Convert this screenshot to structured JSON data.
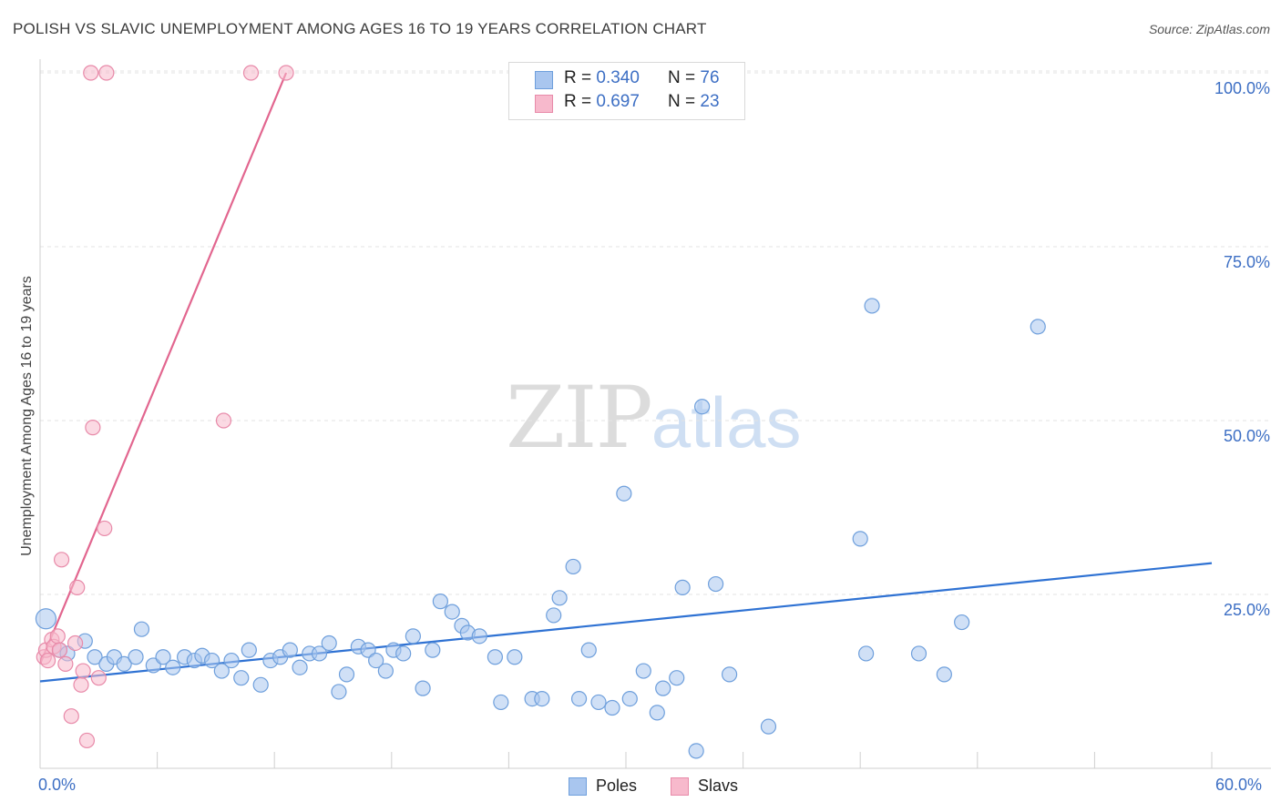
{
  "title": "POLISH VS SLAVIC UNEMPLOYMENT AMONG AGES 16 TO 19 YEARS CORRELATION CHART",
  "source": "Source: ZipAtlas.com",
  "watermark": {
    "zip": "ZIP",
    "atlas": "atlas"
  },
  "colors": {
    "poles_fill": "#a9c6ef",
    "poles_stroke": "#6e9fdc",
    "poles_line": "#2f72d3",
    "slavs_fill": "#f7b9cc",
    "slavs_stroke": "#e88aa9",
    "slavs_line": "#e2668f",
    "grid": "#e3e3e3",
    "axis_text": "#3d6fc4"
  },
  "legend": {
    "poles": {
      "r_label": "R =",
      "r_value": "0.340",
      "n_label": "N =",
      "n_value": "76"
    },
    "slavs": {
      "r_label": "R =",
      "r_value": "0.697",
      "n_label": "N =",
      "n_value": "23"
    }
  },
  "bottom_legend": {
    "poles": "Poles",
    "slavs": "Slavs"
  },
  "chart_data": {
    "type": "scatter",
    "title": "POLISH VS SLAVIC UNEMPLOYMENT AMONG AGES 16 TO 19 YEARS CORRELATION CHART",
    "xlabel": "",
    "ylabel": "Unemployment Among Ages 16 to 19 years",
    "xlim": [
      0,
      60
    ],
    "ylim": [
      0,
      105
    ],
    "x_tick_labels": [
      "0.0%",
      "60.0%"
    ],
    "y_ticks": [
      {
        "value": 25,
        "label": "25.0%"
      },
      {
        "value": 50,
        "label": "50.0%"
      },
      {
        "value": 75,
        "label": "75.0%"
      },
      {
        "value": 100,
        "label": "100.0%"
      }
    ],
    "grid": true,
    "series": [
      {
        "name": "Poles",
        "points": [
          [
            0.3,
            21.5
          ],
          [
            1.0,
            17.0
          ],
          [
            1.4,
            16.5
          ],
          [
            2.3,
            18.3
          ],
          [
            2.8,
            16.0
          ],
          [
            3.4,
            15.0
          ],
          [
            3.8,
            16.0
          ],
          [
            4.3,
            15.0
          ],
          [
            4.9,
            16.0
          ],
          [
            5.2,
            20.0
          ],
          [
            5.8,
            14.8
          ],
          [
            6.3,
            16.0
          ],
          [
            6.8,
            14.5
          ],
          [
            7.4,
            16.0
          ],
          [
            7.9,
            15.5
          ],
          [
            8.3,
            16.2
          ],
          [
            8.8,
            15.5
          ],
          [
            9.3,
            14.0
          ],
          [
            9.8,
            15.5
          ],
          [
            10.3,
            13.0
          ],
          [
            10.7,
            17.0
          ],
          [
            11.3,
            12.0
          ],
          [
            11.8,
            15.5
          ],
          [
            12.3,
            16.0
          ],
          [
            12.8,
            17.0
          ],
          [
            13.3,
            14.5
          ],
          [
            13.8,
            16.5
          ],
          [
            14.3,
            16.5
          ],
          [
            14.8,
            18.0
          ],
          [
            15.3,
            11.0
          ],
          [
            15.7,
            13.5
          ],
          [
            16.3,
            17.5
          ],
          [
            16.8,
            17.0
          ],
          [
            17.2,
            15.5
          ],
          [
            17.7,
            14.0
          ],
          [
            18.1,
            17.0
          ],
          [
            18.6,
            16.5
          ],
          [
            19.1,
            19.0
          ],
          [
            19.6,
            11.5
          ],
          [
            20.1,
            17.0
          ],
          [
            20.5,
            24.0
          ],
          [
            21.1,
            22.5
          ],
          [
            21.6,
            20.5
          ],
          [
            21.9,
            19.5
          ],
          [
            22.5,
            19.0
          ],
          [
            23.3,
            16.0
          ],
          [
            23.6,
            9.5
          ],
          [
            24.3,
            16.0
          ],
          [
            25.2,
            10.0
          ],
          [
            25.7,
            10.0
          ],
          [
            26.3,
            22.0
          ],
          [
            26.6,
            24.5
          ],
          [
            27.3,
            29.0
          ],
          [
            27.6,
            10.0
          ],
          [
            28.1,
            17.0
          ],
          [
            28.6,
            9.5
          ],
          [
            29.3,
            8.7
          ],
          [
            29.9,
            39.5
          ],
          [
            30.2,
            10.0
          ],
          [
            30.9,
            14.0
          ],
          [
            31.6,
            8.0
          ],
          [
            31.9,
            11.5
          ],
          [
            32.6,
            13.0
          ],
          [
            32.9,
            26.0
          ],
          [
            33.6,
            2.5
          ],
          [
            33.9,
            52.0
          ],
          [
            34.6,
            26.5
          ],
          [
            35.3,
            13.5
          ],
          [
            37.3,
            6.0
          ],
          [
            42.0,
            33.0
          ],
          [
            42.3,
            16.5
          ],
          [
            42.6,
            66.5
          ],
          [
            46.3,
            13.5
          ],
          [
            47.2,
            21.0
          ],
          [
            51.1,
            63.5
          ],
          [
            45.0,
            16.5
          ]
        ],
        "trend": {
          "x": [
            0,
            60
          ],
          "y": [
            12.5,
            29.5
          ]
        }
      },
      {
        "name": "Slavs",
        "points": [
          [
            0.2,
            16.0
          ],
          [
            0.3,
            17.0
          ],
          [
            0.6,
            18.5
          ],
          [
            0.7,
            17.5
          ],
          [
            0.9,
            19.0
          ],
          [
            1.0,
            17.0
          ],
          [
            1.1,
            30.0
          ],
          [
            1.3,
            15.0
          ],
          [
            1.6,
            7.5
          ],
          [
            1.8,
            18.0
          ],
          [
            1.9,
            26.0
          ],
          [
            2.1,
            12.0
          ],
          [
            2.2,
            14.0
          ],
          [
            2.4,
            4.0
          ],
          [
            2.7,
            49.0
          ],
          [
            3.0,
            13.0
          ],
          [
            3.3,
            34.5
          ],
          [
            2.6,
            100.0
          ],
          [
            3.4,
            100.0
          ],
          [
            9.4,
            50.0
          ],
          [
            10.8,
            100.0
          ],
          [
            12.6,
            100.0
          ],
          [
            0.4,
            15.5
          ]
        ],
        "trend": {
          "x": [
            0,
            12.6
          ],
          "y": [
            15.0,
            100.0
          ]
        }
      }
    ]
  }
}
